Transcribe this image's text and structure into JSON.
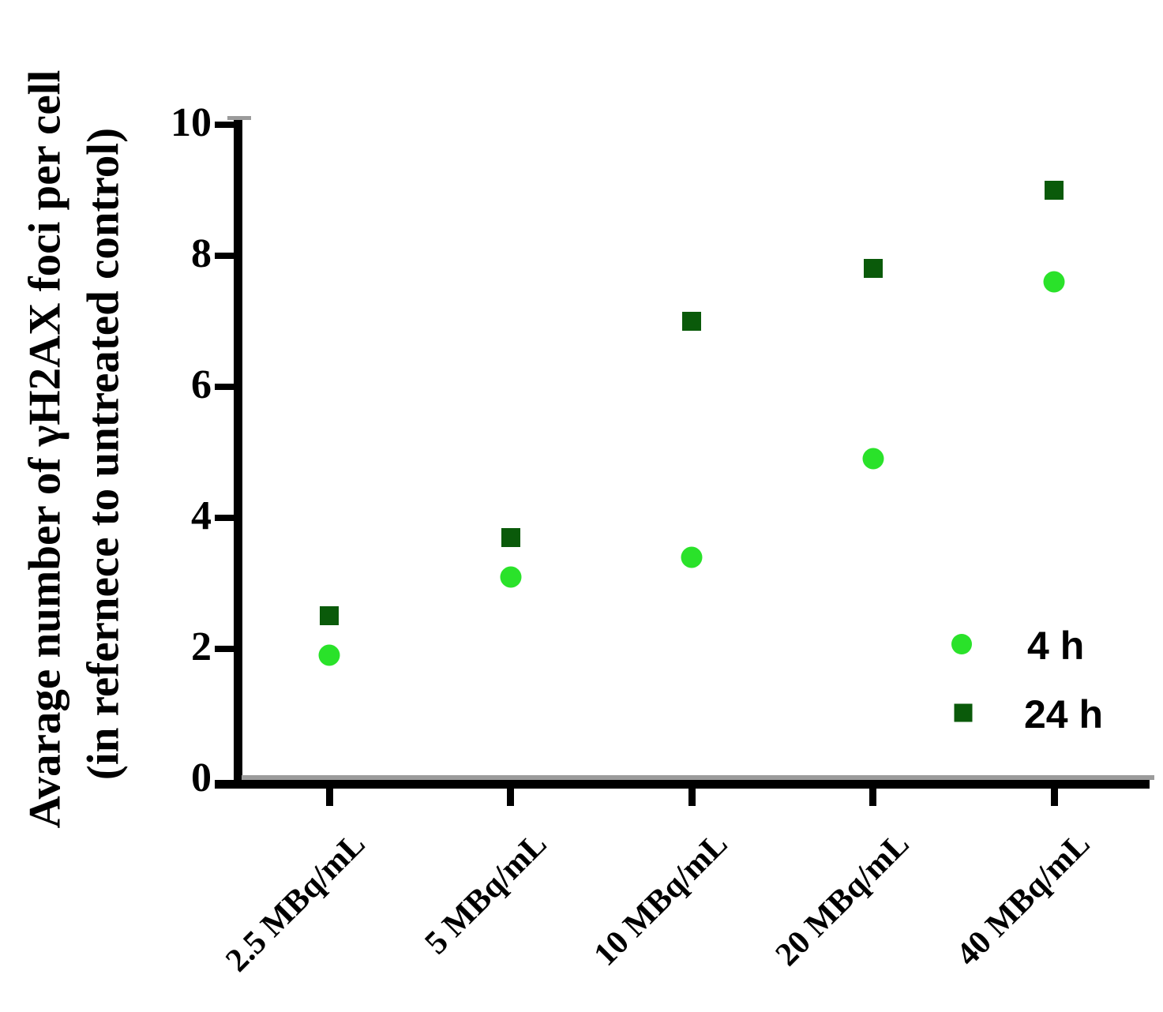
{
  "chart_data": {
    "type": "scatter",
    "title": "",
    "ylabel_line1": "Avarage number of γH2AX foci per cell",
    "ylabel_line2": "(in refernece to untreated control)",
    "xlabel": "",
    "categories": [
      "2.5 MBq/mL",
      "5 MBq/mL",
      "10 MBq/mL",
      "20 MBq/mL",
      "40 MBq/mL"
    ],
    "series": [
      {
        "name": "4 h",
        "marker": "circle",
        "color": "#2AE22A",
        "values": [
          1.9,
          3.1,
          3.4,
          4.9,
          7.6
        ]
      },
      {
        "name": "24 h",
        "marker": "square",
        "color": "#0A5A0A",
        "values": [
          2.5,
          3.7,
          7.0,
          7.8,
          9.0
        ]
      }
    ],
    "y_axis": {
      "min": 0,
      "max": 10,
      "ticks": [
        0,
        2,
        4,
        6,
        8,
        10
      ]
    },
    "grid": false,
    "legend_position": "inside-right"
  },
  "colors": {
    "axis": "#000000",
    "background": "#ffffff",
    "series_4h": "#2AE22A",
    "series_24h": "#0A5A0A"
  }
}
